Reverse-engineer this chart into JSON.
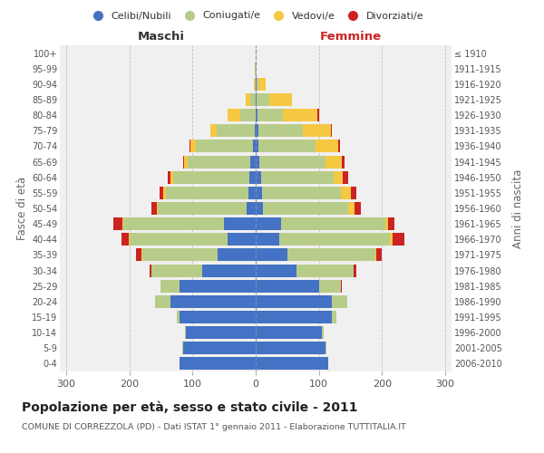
{
  "age_groups": [
    "0-4",
    "5-9",
    "10-14",
    "15-19",
    "20-24",
    "25-29",
    "30-34",
    "35-39",
    "40-44",
    "45-49",
    "50-54",
    "55-59",
    "60-64",
    "65-69",
    "70-74",
    "75-79",
    "80-84",
    "85-89",
    "90-94",
    "95-99",
    "100+"
  ],
  "birth_years": [
    "2006-2010",
    "2001-2005",
    "1996-2000",
    "1991-1995",
    "1986-1990",
    "1981-1985",
    "1976-1980",
    "1971-1975",
    "1966-1970",
    "1961-1965",
    "1956-1960",
    "1951-1955",
    "1946-1950",
    "1941-1945",
    "1936-1940",
    "1931-1935",
    "1926-1930",
    "1921-1925",
    "1916-1920",
    "1911-1915",
    "≤ 1910"
  ],
  "males": {
    "celibi": [
      120,
      115,
      110,
      120,
      135,
      120,
      85,
      60,
      45,
      50,
      15,
      12,
      10,
      8,
      5,
      2,
      0,
      0,
      0,
      0,
      0
    ],
    "coniugati": [
      0,
      1,
      2,
      5,
      25,
      30,
      80,
      120,
      155,
      160,
      140,
      130,
      120,
      100,
      90,
      60,
      25,
      8,
      2,
      1,
      0
    ],
    "vedovi": [
      0,
      0,
      0,
      0,
      0,
      0,
      0,
      1,
      1,
      1,
      2,
      5,
      5,
      5,
      8,
      10,
      20,
      8,
      1,
      0,
      0
    ],
    "divorziati": [
      0,
      0,
      0,
      0,
      0,
      1,
      3,
      8,
      12,
      15,
      8,
      5,
      4,
      2,
      2,
      0,
      0,
      0,
      0,
      0,
      0
    ]
  },
  "females": {
    "nubili": [
      115,
      110,
      105,
      120,
      120,
      100,
      65,
      50,
      38,
      40,
      12,
      10,
      8,
      6,
      5,
      4,
      3,
      2,
      1,
      0,
      0
    ],
    "coniugate": [
      0,
      2,
      2,
      8,
      25,
      35,
      90,
      140,
      175,
      165,
      135,
      125,
      115,
      105,
      90,
      70,
      40,
      20,
      3,
      1,
      0
    ],
    "vedove": [
      0,
      0,
      0,
      0,
      0,
      0,
      0,
      1,
      3,
      5,
      10,
      15,
      15,
      25,
      35,
      45,
      55,
      35,
      12,
      1,
      0
    ],
    "divorziate": [
      0,
      0,
      0,
      0,
      0,
      2,
      5,
      8,
      20,
      10,
      10,
      10,
      8,
      4,
      3,
      2,
      2,
      1,
      0,
      0,
      0
    ]
  },
  "colors": {
    "celibi_nubili": "#4472c4",
    "coniugati": "#b8cc8a",
    "vedovi": "#f5c842",
    "divorziati": "#cc2222"
  },
  "xlim": 310,
  "title": "Popolazione per età, sesso e stato civile - 2011",
  "subtitle": "COMUNE DI CORREZZOLA (PD) - Dati ISTAT 1° gennaio 2011 - Elaborazione TUTTITALIA.IT",
  "xlabel_left": "Maschi",
  "xlabel_right": "Femmine",
  "ylabel_left": "Fasce di età",
  "ylabel_right": "Anni di nascita",
  "background_color": "#f0f0f0",
  "grid_color": "#cccccc"
}
